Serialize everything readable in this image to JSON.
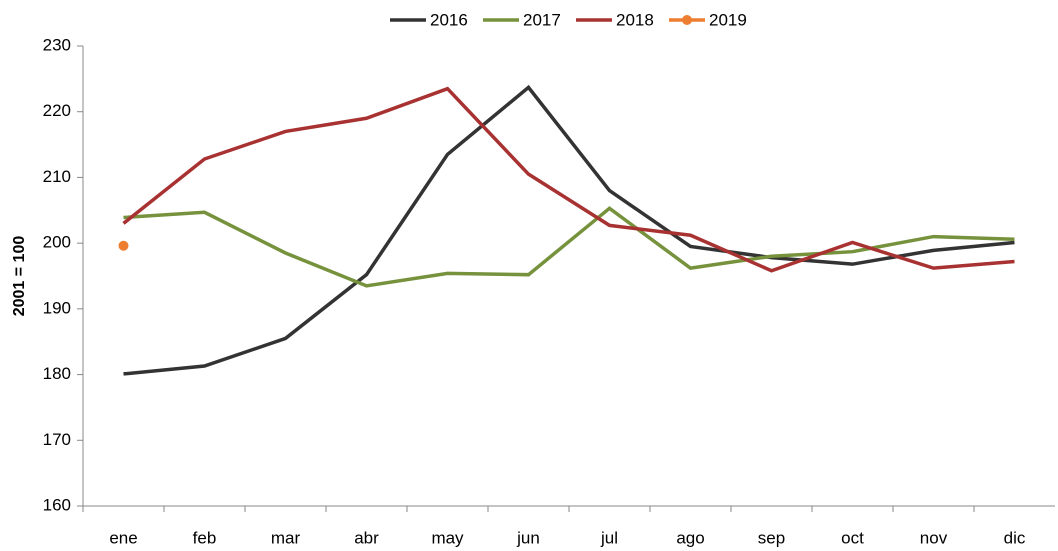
{
  "chart_data": {
    "type": "line",
    "y_label": "2001 = 100",
    "categories": [
      "ene",
      "feb",
      "mar",
      "abr",
      "may",
      "jun",
      "jul",
      "ago",
      "sep",
      "oct",
      "nov",
      "dic"
    ],
    "series": [
      {
        "name": "2016",
        "color": "#333333",
        "values": [
          180.1,
          181.3,
          185.5,
          195.2,
          213.5,
          223.7,
          208.0,
          199.5,
          197.8,
          196.8,
          198.9,
          200.1
        ]
      },
      {
        "name": "2017",
        "color": "#76923c",
        "values": [
          203.9,
          204.7,
          198.5,
          193.5,
          195.4,
          195.2,
          205.3,
          196.2,
          198.0,
          198.7,
          201.0,
          200.6
        ]
      },
      {
        "name": "2018",
        "color": "#a83232",
        "values": [
          203.0,
          212.8,
          217.0,
          219.0,
          223.5,
          210.5,
          202.7,
          201.2,
          195.8,
          200.1,
          196.2,
          197.2
        ]
      },
      {
        "name": "2019",
        "color": "#ed7d31",
        "marker": true,
        "values": [
          199.6,
          null,
          null,
          null,
          null,
          null,
          null,
          null,
          null,
          null,
          null,
          null
        ]
      }
    ],
    "ylim": [
      160,
      230
    ],
    "yticks": [
      160,
      170,
      180,
      190,
      200,
      210,
      220,
      230
    ],
    "grid": false,
    "legend": "top"
  }
}
